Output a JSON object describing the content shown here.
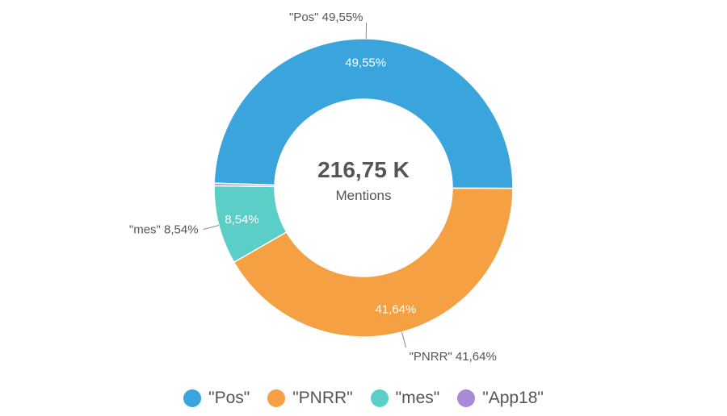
{
  "chart_data": {
    "type": "pie",
    "variant": "donut",
    "center": {
      "value": "216,75 K",
      "label": "Mentions"
    },
    "slices": [
      {
        "name": "\"Pos\"",
        "value": 49.55,
        "label": "49,55%",
        "callout": "\"Pos\" 49,55%",
        "color": "#3aa5dc"
      },
      {
        "name": "\"PNRR\"",
        "value": 41.64,
        "label": "41,64%",
        "callout": "\"PNRR\" 41,64%",
        "color": "#f5a043"
      },
      {
        "name": "\"mes\"",
        "value": 8.54,
        "label": "8,54%",
        "callout": "\"mes\" 8,54%",
        "color": "#5bcfc7"
      },
      {
        "name": "\"App18\"",
        "value": 0.27,
        "label": "",
        "callout": "",
        "color": "#a889d6"
      }
    ],
    "legend_position": "bottom",
    "label_color_inside": "#ffffff",
    "label_color_outside": "#555555"
  }
}
